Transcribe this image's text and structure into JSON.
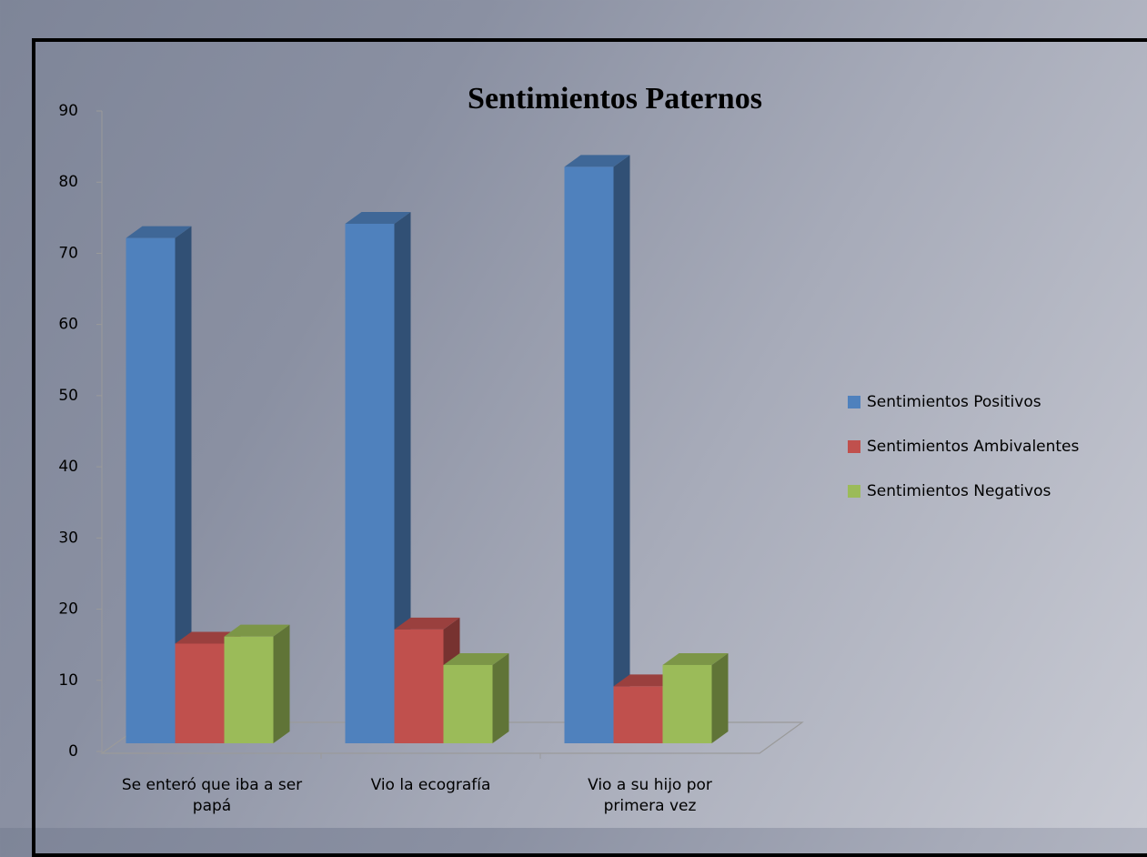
{
  "chart_data": {
    "type": "bar3d",
    "title": "Sentimientos Paternos",
    "categories": [
      "Se enteró que iba a ser papá",
      "Vio la ecografía",
      "Vio a su hijo por primera vez"
    ],
    "series": [
      {
        "name": "Sentimientos Positivos",
        "color": "#4f81bd",
        "values": [
          71,
          73,
          81
        ]
      },
      {
        "name": "Sentimientos Ambivalentes",
        "color": "#c0504d",
        "values": [
          14,
          16,
          8
        ]
      },
      {
        "name": "Sentimientos Negativos",
        "color": "#9bbb59",
        "values": [
          15,
          11,
          11
        ]
      }
    ],
    "ylim": [
      0,
      90
    ],
    "yticks": [
      0,
      10,
      20,
      30,
      40,
      50,
      60,
      70,
      80,
      90
    ],
    "legend": "right"
  }
}
